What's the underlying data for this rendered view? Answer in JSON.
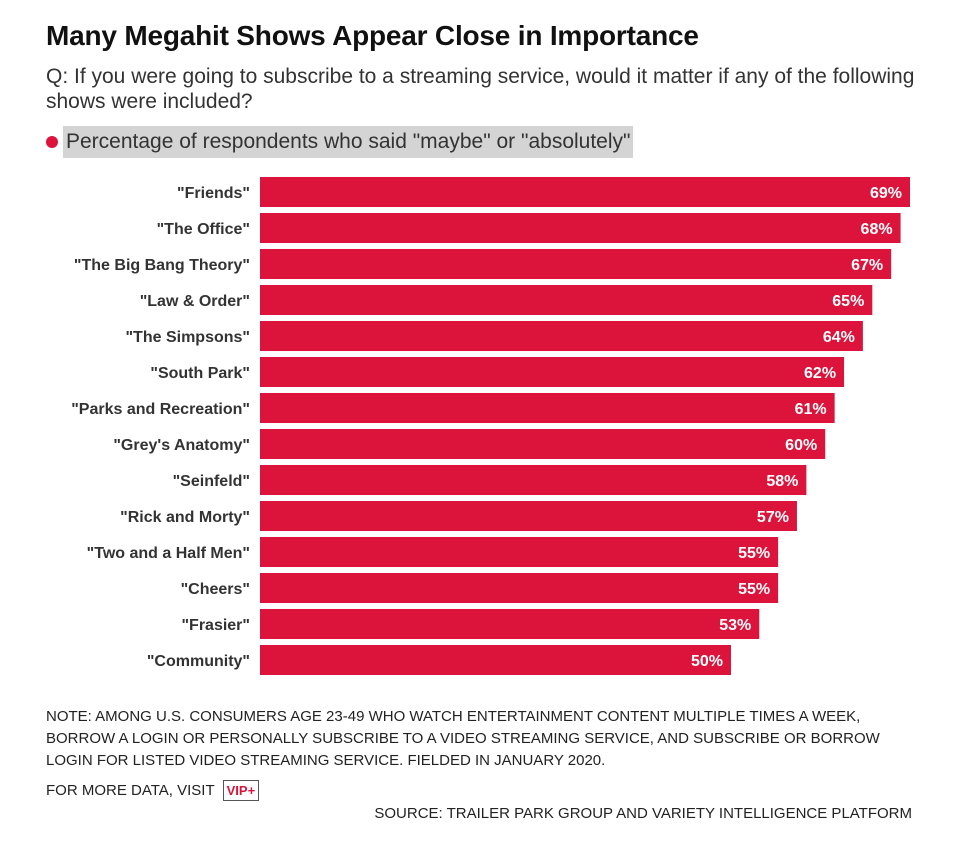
{
  "title": "Many Megahit Shows Appear Close in Importance",
  "subtitle": "Q: If you were going to subscribe to a streaming service, would it matter if any of the following shows were included?",
  "legend": {
    "label": "Percentage of respondents who said \"maybe\" or \"absolutely\"",
    "color": "#dc143c"
  },
  "chart_data": {
    "type": "bar",
    "orientation": "horizontal",
    "title": "Many Megahit Shows Appear Close in Importance",
    "xlabel": "",
    "ylabel": "",
    "xlim": [
      0,
      69
    ],
    "unit": "%",
    "series": [
      {
        "name": "Percentage of respondents who said \"maybe\" or \"absolutely\"",
        "color": "#dc143c",
        "values": [
          69,
          68,
          67,
          65,
          64,
          62,
          61,
          60,
          58,
          57,
          55,
          55,
          53,
          50
        ]
      }
    ],
    "categories": [
      "\"Friends\"",
      "\"The Office\"",
      "\"The Big Bang Theory\"",
      "\"Law & Order\"",
      "\"The Simpsons\"",
      "\"South Park\"",
      "\"Parks and Recreation\"",
      "\"Grey's Anatomy\"",
      "\"Seinfeld\"",
      "\"Rick and Morty\"",
      "\"Two and a Half Men\"",
      "\"Cheers\"",
      "\"Frasier\"",
      "\"Community\""
    ],
    "value_labels": [
      "69%",
      "68%",
      "67%",
      "65%",
      "64%",
      "62%",
      "61%",
      "60%",
      "58%",
      "57%",
      "55%",
      "55%",
      "53%",
      "50%"
    ]
  },
  "footer": {
    "note": "NOTE: AMONG U.S. CONSUMERS AGE 23-49 WHO WATCH ENTERTAINMENT CONTENT MULTIPLE TIMES A WEEK, BORROW A LOGIN OR PERSONALLY SUBSCRIBE TO A VIDEO STREAMING SERVICE, AND SUBSCRIBE OR BORROW LOGIN FOR LISTED VIDEO STREAMING SERVICE. FIELDED IN JANUARY 2020.",
    "more_data": "FOR MORE DATA, VISIT",
    "vip_badge": "VIP+",
    "source": "SOURCE: TRAILER PARK GROUP AND VARIETY INTELLIGENCE PLATFORM"
  }
}
